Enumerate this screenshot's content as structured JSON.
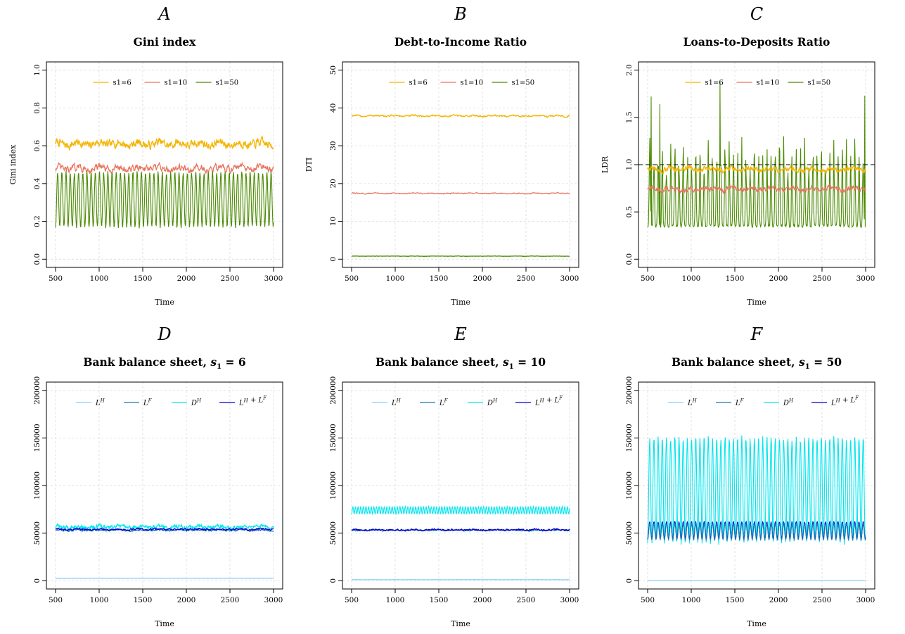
{
  "chart_data": [
    {
      "panel": "A",
      "type": "line",
      "title": "Gini index",
      "xlabel": "Time",
      "ylabel": "Gini index",
      "xlim": [
        500,
        3000
      ],
      "ylim": [
        0,
        1
      ],
      "xticks": [
        "500",
        "1000",
        "1500",
        "2000",
        "2500",
        "3000"
      ],
      "yticks": [
        "0.0",
        "0.2",
        "0.4",
        "0.6",
        "0.8",
        "1.0"
      ],
      "grid": true,
      "legend": "top",
      "series": [
        {
          "name": "s1=6",
          "color": "#f5b400",
          "style": "noisy",
          "mean": 0.61,
          "amp": 0.025
        },
        {
          "name": "s1=10",
          "color": "#e8755f",
          "style": "noisy",
          "mean": 0.48,
          "amp": 0.02
        },
        {
          "name": "s1=50",
          "color": "#4b8b00",
          "style": "oscillation",
          "low": 0.17,
          "high": 0.46,
          "period": 48
        }
      ]
    },
    {
      "panel": "B",
      "type": "line",
      "title": "Debt-to-Income Ratio",
      "xlabel": "Time",
      "ylabel": "DTI",
      "xlim": [
        500,
        3000
      ],
      "ylim": [
        0,
        50
      ],
      "xticks": [
        "500",
        "1000",
        "1500",
        "2000",
        "2500",
        "3000"
      ],
      "yticks": [
        "0",
        "10",
        "20",
        "30",
        "40",
        "50"
      ],
      "grid": true,
      "legend": "top",
      "series": [
        {
          "name": "s1=6",
          "color": "#f5b400",
          "style": "noisy",
          "mean": 37.9,
          "amp": 0.25
        },
        {
          "name": "s1=10",
          "color": "#e8755f",
          "style": "noisy",
          "mean": 17.4,
          "amp": 0.15
        },
        {
          "name": "s1=50",
          "color": "#4b8b00",
          "style": "noisy",
          "mean": 0.8,
          "amp": 0.05
        }
      ]
    },
    {
      "panel": "C",
      "type": "line",
      "title": "Loans-to-Deposits Ratio",
      "xlabel": "Time",
      "ylabel": "LDR",
      "xlim": [
        500,
        3000
      ],
      "ylim": [
        0,
        2
      ],
      "xticks": [
        "500",
        "1000",
        "1500",
        "2000",
        "2500",
        "3000"
      ],
      "yticks": [
        "0.0",
        "0.5",
        "1.0",
        "1.5",
        "2.0"
      ],
      "grid": true,
      "legend": "top",
      "hline": 1.0,
      "series": [
        {
          "name": "s1=50",
          "color": "#4b8b00",
          "style": "spiky",
          "low": 0.35,
          "high": 1.3,
          "period": 48,
          "spikes": [
            [
              540,
              1.72
            ],
            [
              640,
              1.64
            ],
            [
              1330,
              1.87
            ],
            [
              2990,
              1.73
            ]
          ]
        },
        {
          "name": "s1=10",
          "color": "#e8755f",
          "style": "noisy",
          "mean": 0.74,
          "amp": 0.03
        },
        {
          "name": "s1=6",
          "color": "#f5b400",
          "style": "noisy",
          "mean": 0.95,
          "amp": 0.03
        }
      ],
      "legend_order": [
        "s1=6",
        "s1=10",
        "s1=50"
      ]
    },
    {
      "panel": "D",
      "type": "line",
      "title": "Bank balance sheet, s1 = 6",
      "title_main": "Bank balance sheet,",
      "title_param": "s",
      "title_sub": "1",
      "title_value": " = 6",
      "xlabel": "Time",
      "xlim": [
        500,
        3000
      ],
      "ylim": [
        0,
        200000
      ],
      "xticks": [
        "500",
        "1000",
        "1500",
        "2000",
        "2500",
        "3000"
      ],
      "yticks": [
        "0",
        "50000",
        "100000",
        "150000",
        "200000"
      ],
      "grid": true,
      "legend": "top",
      "series": [
        {
          "name": "D^H",
          "color": "#00e5ee",
          "style": "noisy",
          "mean": 56500,
          "amp": 2200
        },
        {
          "name": "L^F",
          "color": "#1f78b4",
          "style": "noisy",
          "mean": 53000,
          "amp": 1000
        },
        {
          "name": "L^H + L^F",
          "color": "#0000cd",
          "style": "noisy",
          "mean": 54000,
          "amp": 1000
        },
        {
          "name": "L^H",
          "color": "#87cefa",
          "style": "noisy",
          "mean": 2500,
          "amp": 100
        }
      ],
      "legend_order": [
        "L^H",
        "L^F",
        "D^H",
        "L^H + L^F"
      ]
    },
    {
      "panel": "E",
      "type": "line",
      "title": "Bank balance sheet, s1 = 10",
      "title_main": "Bank balance sheet,",
      "title_param": "s",
      "title_sub": "1",
      "title_value": " = 10",
      "xlabel": "Time",
      "xlim": [
        500,
        3000
      ],
      "ylim": [
        0,
        200000
      ],
      "xticks": [
        "500",
        "1000",
        "1500",
        "2000",
        "2500",
        "3000"
      ],
      "yticks": [
        "0",
        "50000",
        "100000",
        "150000",
        "200000"
      ],
      "grid": true,
      "legend": "top",
      "series": [
        {
          "name": "D^H",
          "color": "#00e5ee",
          "style": "oscillation",
          "low": 70000,
          "high": 78000,
          "period": 30
        },
        {
          "name": "L^F",
          "color": "#1f78b4",
          "style": "noisy",
          "mean": 53000,
          "amp": 800
        },
        {
          "name": "L^H + L^F",
          "color": "#0000cd",
          "style": "noisy",
          "mean": 53500,
          "amp": 900
        },
        {
          "name": "L^H",
          "color": "#87cefa",
          "style": "noisy",
          "mean": 1000,
          "amp": 50
        }
      ],
      "legend_order": [
        "L^H",
        "L^F",
        "D^H",
        "L^H + L^F"
      ]
    },
    {
      "panel": "F",
      "type": "line",
      "title": "Bank balance sheet, s1 = 50",
      "title_main": "Bank balance sheet,",
      "title_param": "s",
      "title_sub": "1",
      "title_value": " = 50",
      "xlabel": "Time",
      "xlim": [
        500,
        3000
      ],
      "ylim": [
        0,
        200000
      ],
      "xticks": [
        "500",
        "1000",
        "1500",
        "2000",
        "2500",
        "3000"
      ],
      "yticks": [
        "0",
        "50000",
        "100000",
        "150000",
        "200000"
      ],
      "grid": true,
      "legend": "top",
      "series": [
        {
          "name": "D^H",
          "color": "#00e5ee",
          "style": "oscillation",
          "low": 40000,
          "high": 150000,
          "period": 48
        },
        {
          "name": "L^H + L^F",
          "color": "#0000cd",
          "style": "oscillation",
          "low": 44000,
          "high": 62000,
          "period": 48
        },
        {
          "name": "L^F",
          "color": "#1f78b4",
          "style": "oscillation",
          "low": 43000,
          "high": 60000,
          "period": 48
        },
        {
          "name": "L^H",
          "color": "#87cefa",
          "style": "noisy",
          "mean": 200,
          "amp": 20
        }
      ],
      "legend_order": [
        "L^H",
        "L^F",
        "D^H",
        "L^H + L^F"
      ]
    }
  ]
}
